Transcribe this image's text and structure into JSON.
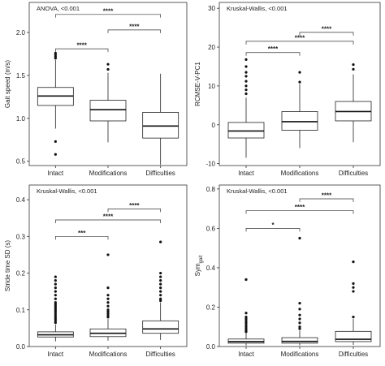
{
  "chart_data": [
    {
      "type": "box",
      "id": "gait",
      "test_label": "ANOVA, <0.001",
      "ylabel": "Gait speed (m/s)",
      "ylim": [
        0.45,
        2.35
      ],
      "yticks": [
        0.5,
        1.0,
        1.5,
        2.0
      ],
      "ytick_labels": [
        "0.5",
        "1.0",
        "1.5",
        "2.0"
      ],
      "categories": [
        "Intact",
        "Modifications",
        "Difficulties"
      ],
      "boxes": [
        {
          "category": "Intact",
          "whisker_low": 0.88,
          "q1": 1.15,
          "median": 1.26,
          "q3": 1.36,
          "whisker_high": 1.68,
          "outliers": [
            0.58,
            0.73,
            1.7,
            1.72,
            1.74,
            1.76
          ]
        },
        {
          "category": "Modifications",
          "whisker_low": 0.72,
          "q1": 0.97,
          "median": 1.1,
          "q3": 1.21,
          "whisker_high": 1.53,
          "outliers": [
            1.57,
            1.63
          ]
        },
        {
          "category": "Difficulties",
          "whisker_low": 0.46,
          "q1": 0.77,
          "median": 0.91,
          "q3": 1.07,
          "whisker_high": 1.52,
          "outliers": []
        }
      ],
      "comparisons": [
        {
          "from": 0,
          "to": 1,
          "label": "****",
          "y": 1.81
        },
        {
          "from": 1,
          "to": 2,
          "label": "****",
          "y": 2.03
        },
        {
          "from": 0,
          "to": 2,
          "label": "****",
          "y": 2.21
        }
      ]
    },
    {
      "type": "box",
      "id": "rcmse",
      "test_label": "Kruskal-Wallis, <0.001",
      "ylabel": "RCMSE-V-PC1",
      "ylim": [
        -10.5,
        31.5
      ],
      "yticks": [
        -10,
        0,
        10,
        20,
        30
      ],
      "ytick_labels": [
        "-10",
        "0",
        "10",
        "20",
        "30"
      ],
      "categories": [
        "Intact",
        "Modifications",
        "Difficulties"
      ],
      "boxes": [
        {
          "category": "Intact",
          "whisker_low": -8.5,
          "q1": -3.4,
          "median": -1.6,
          "q3": 0.6,
          "whisker_high": 7.0,
          "outliers": [
            8.0,
            9.0,
            10.0,
            11.2,
            12.5,
            13.5,
            15.0,
            16.8
          ]
        },
        {
          "category": "Modifications",
          "whisker_low": -6.0,
          "q1": -1.4,
          "median": 0.8,
          "q3": 3.4,
          "whisker_high": 10.5,
          "outliers": [
            11.0,
            13.5
          ]
        },
        {
          "category": "Difficulties",
          "whisker_low": -4.5,
          "q1": 1.0,
          "median": 3.4,
          "q3": 6.0,
          "whisker_high": 13.0,
          "outliers": [
            14.3,
            15.5
          ]
        }
      ],
      "comparisons": [
        {
          "from": 0,
          "to": 1,
          "label": "****",
          "y": 18.6
        },
        {
          "from": 1,
          "to": 2,
          "label": "****",
          "y": 23.8
        },
        {
          "from": 0,
          "to": 2,
          "label": "****",
          "y": 21.5
        }
      ]
    },
    {
      "type": "box",
      "id": "stride",
      "test_label": "Kruskal-Wallis, <0.001",
      "ylabel": "Stride time SD (s)",
      "ylim": [
        0.0,
        0.44
      ],
      "yticks": [
        0.0,
        0.1,
        0.2,
        0.3,
        0.4
      ],
      "ytick_labels": [
        "0.0",
        "0.1",
        "0.2",
        "0.3",
        "0.4"
      ],
      "categories": [
        "Intact",
        "Modifications",
        "Difficulties"
      ],
      "boxes": [
        {
          "category": "Intact",
          "whisker_low": 0.014,
          "q1": 0.026,
          "median": 0.032,
          "q3": 0.04,
          "whisker_high": 0.06,
          "outliers": [
            0.065,
            0.07,
            0.075,
            0.08,
            0.085,
            0.09,
            0.095,
            0.1,
            0.105,
            0.11,
            0.115,
            0.12,
            0.13,
            0.14,
            0.15,
            0.16,
            0.17,
            0.18,
            0.19
          ]
        },
        {
          "category": "Modifications",
          "whisker_low": 0.016,
          "q1": 0.027,
          "median": 0.036,
          "q3": 0.048,
          "whisker_high": 0.075,
          "outliers": [
            0.08,
            0.085,
            0.09,
            0.095,
            0.1,
            0.11,
            0.12,
            0.13,
            0.14,
            0.16,
            0.25
          ]
        },
        {
          "category": "Difficulties",
          "whisker_low": 0.018,
          "q1": 0.036,
          "median": 0.048,
          "q3": 0.07,
          "whisker_high": 0.12,
          "outliers": [
            0.125,
            0.13,
            0.14,
            0.15,
            0.16,
            0.17,
            0.18,
            0.19,
            0.2,
            0.285
          ]
        }
      ],
      "comparisons": [
        {
          "from": 0,
          "to": 1,
          "label": "***",
          "y": 0.3
        },
        {
          "from": 0,
          "to": 2,
          "label": "****",
          "y": 0.345
        },
        {
          "from": 1,
          "to": 2,
          "label": "****",
          "y": 0.375
        }
      ]
    },
    {
      "type": "box",
      "id": "sym",
      "test_label": "Kruskal-Wallis, <0.001",
      "ylabel": "Sym",
      "ylabel_sub": "gait",
      "ylim": [
        0.0,
        0.82
      ],
      "yticks": [
        0.0,
        0.2,
        0.4,
        0.6,
        0.8
      ],
      "ytick_labels": [
        "0.0",
        "0.2",
        "0.4",
        "0.6",
        "0.8"
      ],
      "categories": [
        "Intact",
        "Modifications",
        "Difficulties"
      ],
      "boxes": [
        {
          "category": "Intact",
          "whisker_low": 0.005,
          "q1": 0.017,
          "median": 0.025,
          "q3": 0.038,
          "whisker_high": 0.07,
          "outliers": [
            0.075,
            0.08,
            0.09,
            0.1,
            0.11,
            0.12,
            0.13,
            0.14,
            0.15,
            0.17,
            0.34
          ]
        },
        {
          "category": "Modifications",
          "whisker_low": 0.006,
          "q1": 0.017,
          "median": 0.026,
          "q3": 0.045,
          "whisker_high": 0.08,
          "outliers": [
            0.09,
            0.1,
            0.12,
            0.14,
            0.16,
            0.19,
            0.22,
            0.55
          ]
        },
        {
          "category": "Difficulties",
          "whisker_low": 0.008,
          "q1": 0.025,
          "median": 0.037,
          "q3": 0.077,
          "whisker_high": 0.14,
          "outliers": [
            0.15,
            0.28,
            0.3,
            0.32,
            0.43
          ]
        }
      ],
      "comparisons": [
        {
          "from": 0,
          "to": 1,
          "label": "*",
          "y": 0.6
        },
        {
          "from": 0,
          "to": 2,
          "label": "****",
          "y": 0.69
        },
        {
          "from": 1,
          "to": 2,
          "label": "****",
          "y": 0.75
        }
      ]
    }
  ]
}
